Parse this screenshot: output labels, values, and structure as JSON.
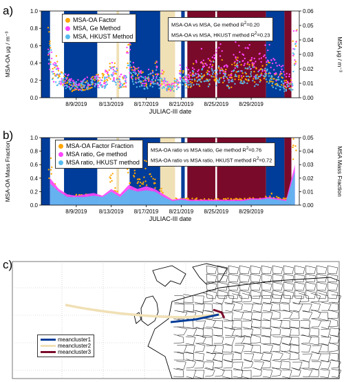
{
  "panel_labels": {
    "a": "a)",
    "b": "b)",
    "c": "c)"
  },
  "colors": {
    "factor": "#ffa500",
    "ge": "#ff44ff",
    "hkust": "#55bbee",
    "cluster1": "#003c99",
    "cluster2": "#f0e0b5",
    "cluster3": "#7a0a2a"
  },
  "chart_data": [
    {
      "type": "scatter",
      "panel": "a",
      "xlabel": "JULIAC-III date",
      "ylabel": "MSA-OA μg / m⁻³",
      "ylabel_right": "MSA μg / m⁻³",
      "xticks": [
        "8/9/2019",
        "8/13/2019",
        "8/17/2019",
        "8/21/2019",
        "8/25/2019",
        "8/29/2019"
      ],
      "xrange_days": [
        5.0,
        34.5
      ],
      "ylim": [
        0,
        1.0
      ],
      "yticks": [
        "0.0",
        "0.2",
        "0.4",
        "0.6",
        "0.8",
        "1.0"
      ],
      "ylim_right": [
        0,
        0.06
      ],
      "yticks_right": [
        "0.00",
        "0.01",
        "0.02",
        "0.03",
        "0.04",
        "0.05",
        "0.06"
      ],
      "series": [
        {
          "name": "MSA-OA Factor",
          "axis": "left",
          "x": [
            6,
            6.5,
            7,
            7.5,
            8,
            8.5,
            9,
            9.5,
            10,
            10.5,
            11,
            11.5,
            12,
            12.5,
            13,
            13.5,
            14,
            14.5,
            15,
            15.5,
            16,
            16.5,
            17,
            17.5,
            18,
            18.5,
            19,
            19.5,
            20,
            20.5,
            21,
            21.5,
            22,
            22.5,
            23,
            23.5,
            24,
            24.5,
            25,
            25.5,
            26,
            26.5,
            27,
            27.5,
            28,
            28.5,
            29,
            29.5,
            30,
            30.5,
            31,
            31.5,
            32,
            32.5,
            33,
            33.5,
            34
          ],
          "y": [
            0.62,
            0.35,
            0.3,
            0.22,
            0.18,
            0.12,
            0.1,
            0.12,
            0.14,
            0.16,
            0.18,
            0.2,
            0.2,
            0.22,
            0.35,
            0.3,
            0.18,
            0.2,
            0.45,
            0.3,
            0.25,
            0.22,
            0.2,
            0.24,
            0.3,
            0.2,
            0.22,
            0.12,
            0.12,
            0.18,
            0.25,
            0.22,
            0.2,
            0.28,
            0.22,
            0.3,
            0.25,
            0.35,
            0.28,
            0.32,
            0.25,
            0.2,
            0.3,
            0.35,
            0.28,
            0.3,
            0.32,
            0.25,
            0.28,
            0.3,
            0.3,
            0.22,
            0.2,
            0.2,
            0.15,
            0.15,
            0.6
          ]
        },
        {
          "name": "MSA, Ge Method",
          "axis": "right",
          "x": [
            6,
            6.5,
            7,
            7.5,
            8,
            8.5,
            9,
            9.5,
            10,
            10.5,
            11,
            11.5,
            12,
            12.5,
            13,
            13.5,
            14,
            14.5,
            15,
            15.5,
            16,
            16.5,
            17,
            17.5,
            18,
            18.5,
            19,
            19.5,
            20,
            20.5,
            21,
            21.5,
            22,
            22.5,
            23,
            23.5,
            24,
            24.5,
            25,
            25.5,
            26,
            26.5,
            27,
            27.5,
            28,
            28.5,
            29,
            29.5,
            30,
            30.5,
            31,
            31.5,
            32,
            32.5,
            33,
            33.5,
            34
          ],
          "y": [
            0.025,
            0.018,
            0.015,
            0.013,
            0.012,
            0.01,
            0.009,
            0.009,
            0.01,
            0.011,
            0.012,
            0.012,
            0.012,
            0.014,
            0.02,
            0.018,
            0.012,
            0.013,
            0.028,
            0.018,
            0.015,
            0.014,
            0.013,
            0.015,
            0.018,
            0.013,
            0.014,
            0.008,
            0.008,
            0.012,
            0.017,
            0.015,
            0.014,
            0.022,
            0.018,
            0.026,
            0.022,
            0.032,
            0.025,
            0.03,
            0.022,
            0.018,
            0.028,
            0.034,
            0.025,
            0.028,
            0.03,
            0.022,
            0.025,
            0.028,
            0.027,
            0.02,
            0.018,
            0.016,
            0.012,
            0.012,
            0.035
          ]
        },
        {
          "name": "MSA, HKUST Method",
          "axis": "right",
          "x": [
            6,
            6.5,
            7,
            7.5,
            8,
            8.5,
            9,
            9.5,
            10,
            10.5,
            11,
            11.5,
            12,
            12.5,
            13,
            13.5,
            14,
            14.5,
            15,
            15.5,
            16,
            16.5,
            17,
            17.5,
            18,
            18.5,
            19,
            19.5,
            20,
            20.5,
            21,
            21.5,
            22,
            22.5,
            23,
            23.5,
            24,
            24.5,
            25,
            25.5,
            26,
            26.5,
            27,
            27.5,
            28,
            28.5,
            29,
            29.5,
            30,
            30.5,
            31,
            31.5,
            32,
            32.5,
            33,
            33.5,
            34
          ],
          "y": [
            0.028,
            0.017,
            0.014,
            0.012,
            0.01,
            0.009,
            0.008,
            0.008,
            0.009,
            0.01,
            0.011,
            0.011,
            0.011,
            0.012,
            0.018,
            0.015,
            0.01,
            0.011,
            0.022,
            0.014,
            0.012,
            0.011,
            0.01,
            0.012,
            0.014,
            0.01,
            0.011,
            0.006,
            0.006,
            0.009,
            0.012,
            0.011,
            0.01,
            0.014,
            0.011,
            0.015,
            0.012,
            0.018,
            0.014,
            0.016,
            0.012,
            0.01,
            0.015,
            0.018,
            0.014,
            0.015,
            0.016,
            0.012,
            0.014,
            0.015,
            0.015,
            0.011,
            0.01,
            0.009,
            0.007,
            0.007,
            0.03
          ]
        }
      ],
      "annotations": [
        {
          "text": "MSA-OA vs MSA, Ge method R",
          "sup": "2",
          "value": "=0.20"
        },
        {
          "text": "MSA-OA vs MSA, HKUST method R",
          "sup": "2",
          "value": "=0.23"
        }
      ],
      "cluster_bands": [
        {
          "cluster": "cluster1",
          "start": 5.0,
          "end": 6.0
        },
        {
          "cluster": "cluster1",
          "start": 7.6,
          "end": 11.4
        },
        {
          "cluster": "cluster2",
          "start": 13.6,
          "end": 13.9
        },
        {
          "cluster": "cluster1",
          "start": 15.1,
          "end": 18.6
        },
        {
          "cluster": "cluster2",
          "start": 18.6,
          "end": 20.3
        },
        {
          "cluster": "cluster1",
          "start": 21.0,
          "end": 21.4
        },
        {
          "cluster": "cluster3",
          "start": 21.7,
          "end": 24.9
        },
        {
          "cluster": "cluster3",
          "start": 25.1,
          "end": 30.7
        },
        {
          "cluster": "cluster1",
          "start": 30.7,
          "end": 32.8
        },
        {
          "cluster": "cluster3",
          "start": 32.8,
          "end": 33.6
        }
      ]
    },
    {
      "type": "area",
      "panel": "b",
      "xlabel": "JULIAC-III date",
      "ylabel": "MSA-OA Mass Fraction",
      "ylabel_right": "MSA Mass Fraction",
      "xticks": [
        "8/9/2019",
        "8/13/2019",
        "8/17/2019",
        "8/21/2019",
        "8/25/2019",
        "8/29/2019"
      ],
      "xrange_days": [
        5.0,
        34.5
      ],
      "ylim": [
        0,
        1.0
      ],
      "yticks": [
        "0.0",
        "0.2",
        "0.4",
        "0.6",
        "0.8",
        "1.0"
      ],
      "ylim_right": [
        0,
        0.05
      ],
      "yticks_right": [
        "0.00",
        "0.01",
        "0.02",
        "0.03",
        "0.04",
        "0.05"
      ],
      "series": [
        {
          "name": "MSA-OA Factor Fraction",
          "axis": "left",
          "x": [
            6,
            6.5,
            7,
            7.5,
            8,
            8.5,
            9,
            9.5,
            10,
            10.5,
            11,
            11.5,
            12,
            12.5,
            13,
            13.5,
            14,
            14.5,
            15,
            15.5,
            16,
            16.5,
            17,
            17.5,
            18,
            18.5,
            19,
            19.5,
            20,
            20.5,
            21,
            21.5,
            22,
            22.5,
            23,
            23.5,
            24,
            24.5,
            25,
            25.5,
            26,
            26.5,
            27,
            27.5,
            28,
            28.5,
            29,
            29.5,
            30,
            30.5,
            31,
            31.5,
            32,
            32.5,
            33,
            33.5,
            34
          ],
          "y": [
            0.55,
            0.3,
            0.2,
            0.15,
            0.12,
            0.1,
            0.12,
            0.14,
            0.15,
            0.15,
            0.14,
            0.12,
            0.1,
            0.1,
            0.38,
            0.2,
            0.12,
            0.15,
            0.45,
            0.4,
            0.3,
            0.35,
            0.55,
            0.4,
            0.35,
            0.2,
            0.15,
            0.08,
            0.06,
            0.08,
            0.1,
            0.1,
            0.08,
            0.08,
            0.08,
            0.08,
            0.08,
            0.08,
            0.08,
            0.08,
            0.08,
            0.08,
            0.08,
            0.08,
            0.08,
            0.08,
            0.1,
            0.08,
            0.08,
            0.1,
            0.12,
            0.15,
            0.12,
            0.08,
            0.08,
            0.08,
            0.8
          ]
        },
        {
          "name": "MSA ratio, Ge method",
          "axis": "right",
          "x": [
            6,
            7,
            8,
            9,
            10,
            11,
            12,
            13,
            14,
            15,
            16,
            17,
            18,
            19,
            20,
            21,
            22,
            23,
            24,
            25,
            26,
            27,
            28,
            29,
            30,
            31,
            32,
            33,
            34
          ],
          "y": [
            0.02,
            0.012,
            0.008,
            0.007,
            0.008,
            0.009,
            0.007,
            0.012,
            0.008,
            0.015,
            0.012,
            0.014,
            0.012,
            0.008,
            0.004,
            0.005,
            0.004,
            0.004,
            0.004,
            0.004,
            0.004,
            0.004,
            0.004,
            0.005,
            0.005,
            0.006,
            0.005,
            0.004,
            0.03
          ]
        },
        {
          "name": "MSA ratio, HKUST method",
          "axis": "right",
          "x": [
            6,
            7,
            8,
            9,
            10,
            11,
            12,
            13,
            14,
            15,
            16,
            17,
            18,
            19,
            20,
            21,
            22,
            23,
            24,
            25,
            26,
            27,
            28,
            29,
            30,
            31,
            32,
            33,
            34
          ],
          "y": [
            0.016,
            0.01,
            0.006,
            0.006,
            0.006,
            0.007,
            0.006,
            0.01,
            0.006,
            0.012,
            0.01,
            0.011,
            0.01,
            0.006,
            0.003,
            0.004,
            0.003,
            0.003,
            0.003,
            0.003,
            0.003,
            0.003,
            0.003,
            0.004,
            0.004,
            0.005,
            0.004,
            0.003,
            0.025
          ]
        }
      ],
      "annotations": [
        {
          "text": "MSA-OA ratio vs MSA ratio, Ge method R",
          "sup": "2",
          "value": "=0.76"
        },
        {
          "text": "MSA-OA ratio vs MSA ratio, HKUST method R",
          "sup": "2",
          "value": "=0.72"
        }
      ]
    }
  ],
  "map": {
    "legend": [
      {
        "label": "meancluster1",
        "color_key": "cluster1"
      },
      {
        "label": "meancluster2",
        "color_key": "cluster2"
      },
      {
        "label": "meancluster3",
        "color_key": "cluster3"
      }
    ]
  }
}
